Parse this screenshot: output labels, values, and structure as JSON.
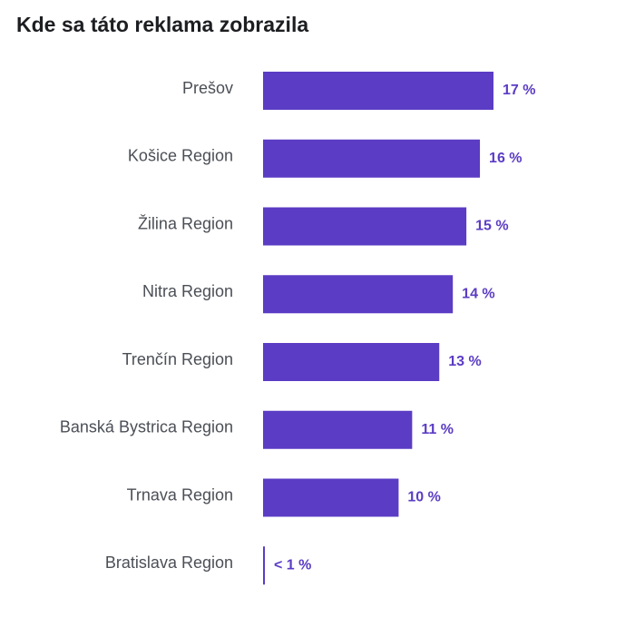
{
  "chart_data": {
    "type": "bar",
    "orientation": "horizontal",
    "title": "Kde sa táto reklama zobrazila",
    "categories": [
      "Prešov",
      "Košice Region",
      "Žilina Region",
      "Nitra Region",
      "Trenčín Region",
      "Banská Bystrica Region",
      "Trnava Region",
      "Bratislava Region"
    ],
    "values": [
      17,
      16,
      15,
      14,
      13,
      11,
      10,
      0.1
    ],
    "value_labels": [
      "17 %",
      "16 %",
      "15 %",
      "14 %",
      "13 %",
      "11 %",
      "10 %",
      "< 1 %"
    ],
    "xlim": [
      0,
      17
    ],
    "grid": false,
    "colors": {
      "bar": "#5b3cc4",
      "label": "#4b4f56",
      "value_label": "#5b3cc4"
    }
  }
}
